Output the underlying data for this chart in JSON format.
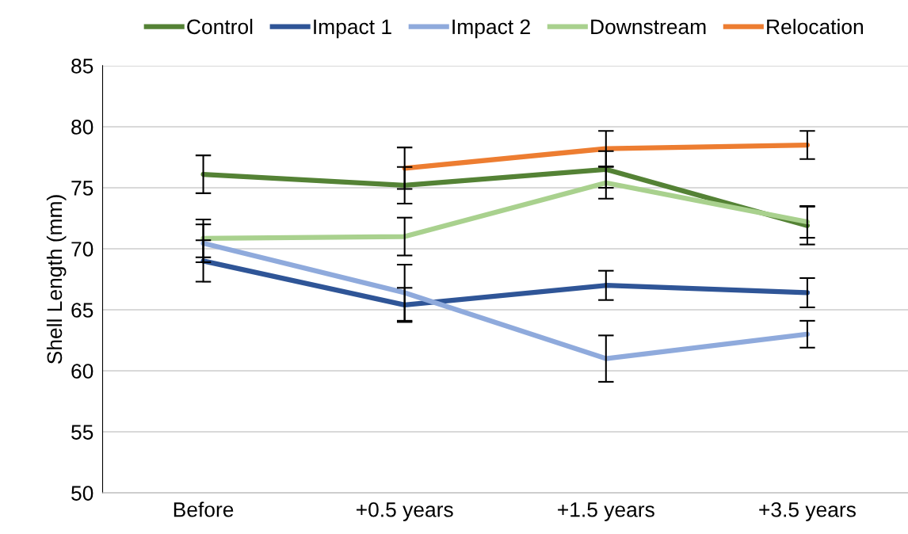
{
  "chart_data": {
    "type": "line",
    "ylabel": "Shell Length (mm)",
    "categories": [
      "Before",
      "+0.5 years",
      "+1.5 years",
      "+3.5 years"
    ],
    "series": [
      {
        "name": "Control",
        "color": "#548235",
        "values": [
          76.1,
          75.2,
          76.5,
          71.9
        ],
        "errors": [
          1.55,
          1.5,
          1.5,
          1.55
        ]
      },
      {
        "name": "Impact 1",
        "color": "#2f5597",
        "values": [
          69.0,
          65.4,
          67.0,
          66.4
        ],
        "errors": [
          1.7,
          1.4,
          1.2,
          1.2
        ]
      },
      {
        "name": "Impact 2",
        "color": "#8faadc",
        "values": [
          70.45,
          66.4,
          61.0,
          63.0
        ],
        "errors": [
          1.55,
          2.3,
          1.9,
          1.1
        ]
      },
      {
        "name": "Downstream",
        "color": "#a9d18e",
        "values": [
          70.85,
          71.0,
          75.4,
          72.2
        ],
        "errors": [
          1.55,
          1.55,
          1.3,
          1.3
        ]
      },
      {
        "name": "Relocation",
        "color": "#ed7d31",
        "values": [
          null,
          76.6,
          78.2,
          78.5
        ],
        "errors": [
          null,
          1.7,
          1.45,
          1.15
        ]
      }
    ],
    "ylim": [
      50,
      85
    ],
    "yticks": [
      50,
      55,
      60,
      65,
      70,
      75,
      80,
      85
    ],
    "grid": "y",
    "legend": "top",
    "marker": "none",
    "line_style": "solid"
  }
}
